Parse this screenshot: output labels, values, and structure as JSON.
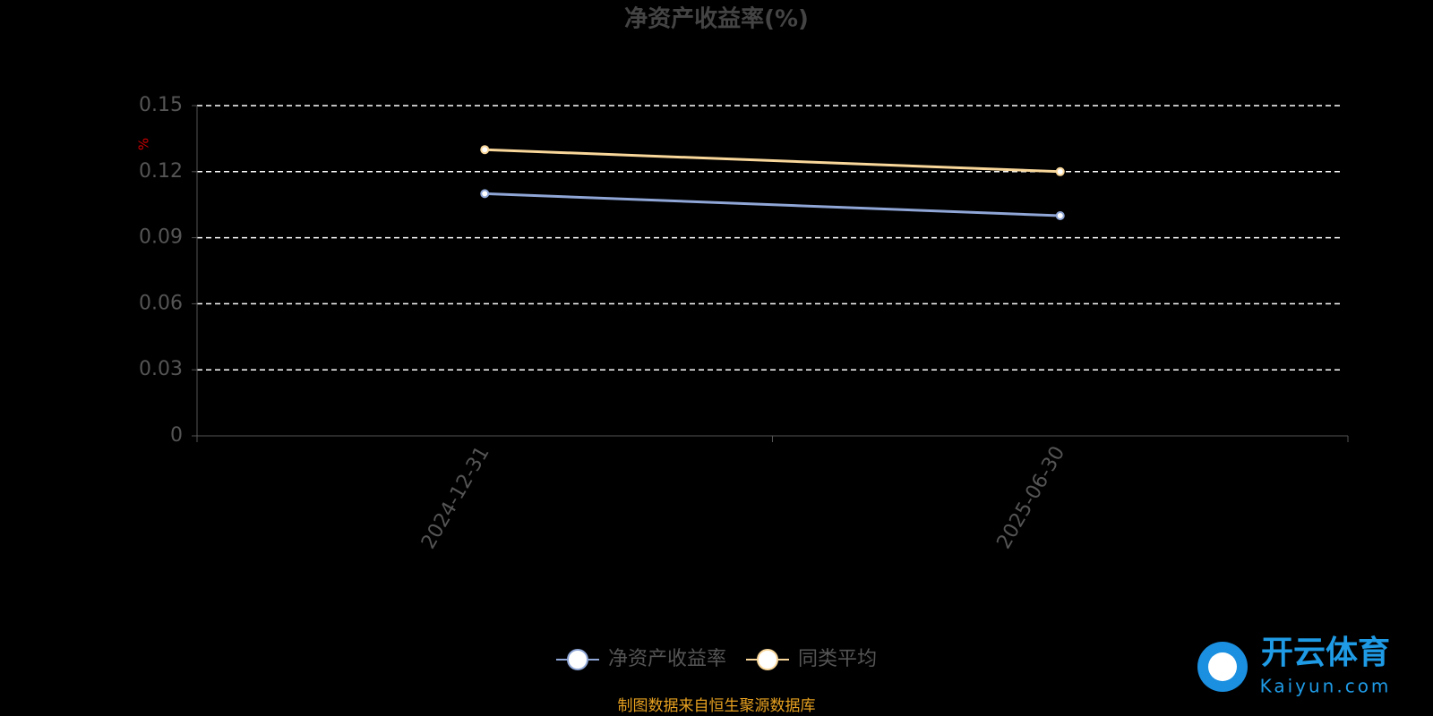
{
  "chart_data": {
    "type": "line",
    "title": "净资产收益率(%)",
    "y_label": "%",
    "categories": [
      "2024-12-31",
      "2025-06-30"
    ],
    "series": [
      {
        "name": "净资产收益率",
        "color": "#8fa6d6",
        "values": [
          0.11,
          0.1
        ]
      },
      {
        "name": "同类平均",
        "color": "#f9d79a",
        "values": [
          0.13,
          0.12
        ]
      }
    ],
    "ylim": [
      0,
      0.15
    ],
    "yticks": [
      0,
      0.03,
      0.06,
      0.09,
      0.12,
      0.15
    ],
    "grid": true,
    "legend": "bottom",
    "source": "制图数据来自恒生聚源数据库"
  },
  "watermark": {
    "brand": "开云体育",
    "site": "Kaiyun.com"
  }
}
